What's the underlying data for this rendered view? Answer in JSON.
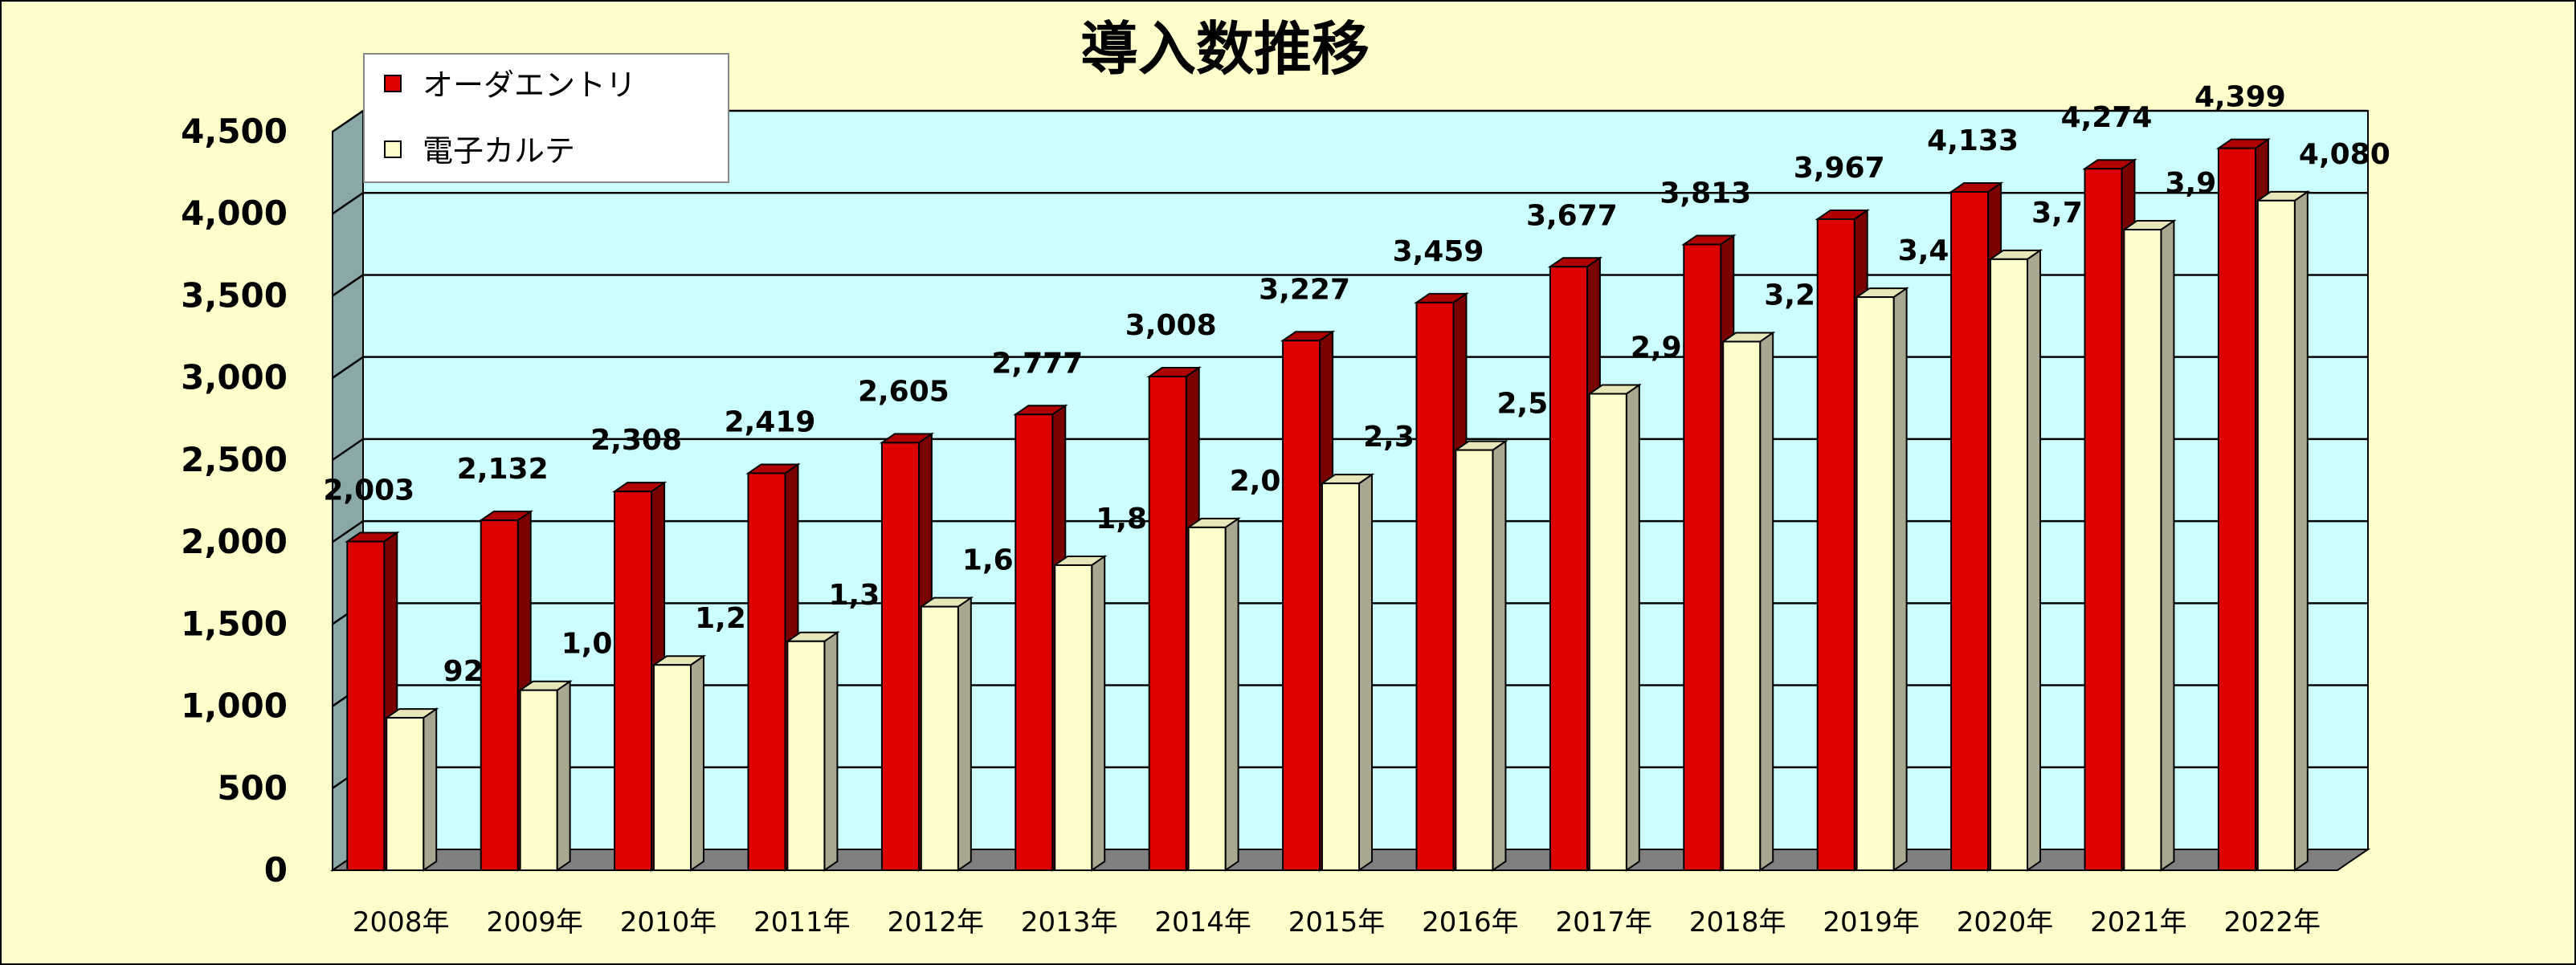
{
  "chart_data": {
    "type": "bar",
    "title": "導入数推移",
    "categories": [
      "2008年",
      "2009年",
      "2010年",
      "2011年",
      "2012年",
      "2013年",
      "2014年",
      "2015年",
      "2016年",
      "2017年",
      "2018年",
      "2019年",
      "2020年",
      "2021年",
      "2022年"
    ],
    "series": [
      {
        "name": "オーダエントリ",
        "color": "#dd0000",
        "values": [
          2003,
          2132,
          2308,
          2419,
          2605,
          2777,
          3008,
          3227,
          3459,
          3677,
          3813,
          3967,
          4133,
          4274,
          4399
        ]
      },
      {
        "name": "電子カルテ",
        "color": "#ffffcc",
        "values": [
          929,
          1097,
          1251,
          1395,
          1606,
          1859,
          2089,
          2357,
          2560,
          2903,
          3221,
          3492,
          3723,
          3903,
          4080
        ]
      }
    ],
    "data_labels": [
      [
        "2,003",
        "2,132",
        "2,308",
        "2,419",
        "2,605",
        "2,777",
        "3,008",
        "3,227",
        "3,459",
        "3,677",
        "3,813",
        "3,967",
        "4,133",
        "4,274",
        "4,399"
      ],
      [
        "929",
        "1,097",
        "1,251",
        "1,395",
        "1,606",
        "1,859",
        "2,089",
        "2,357",
        "2,560",
        "2,903",
        "3,221",
        "3,492",
        "3,723",
        "3,903",
        "4,080"
      ]
    ],
    "y_ticks": [
      0,
      500,
      1000,
      1500,
      2000,
      2500,
      3000,
      3500,
      4000,
      4500
    ],
    "y_tick_labels": [
      "0",
      "500",
      "1,000",
      "1,500",
      "2,000",
      "2,500",
      "3,000",
      "3,500",
      "4,000",
      "4,500"
    ],
    "ylim": [
      0,
      4500
    ],
    "grid": true,
    "legend_position": "top-left",
    "colors": {
      "plot_back_wall": "#ccffff",
      "left_wall": "#8aa8a8",
      "floor": "#808080",
      "page_background": "#ffffcc"
    }
  }
}
